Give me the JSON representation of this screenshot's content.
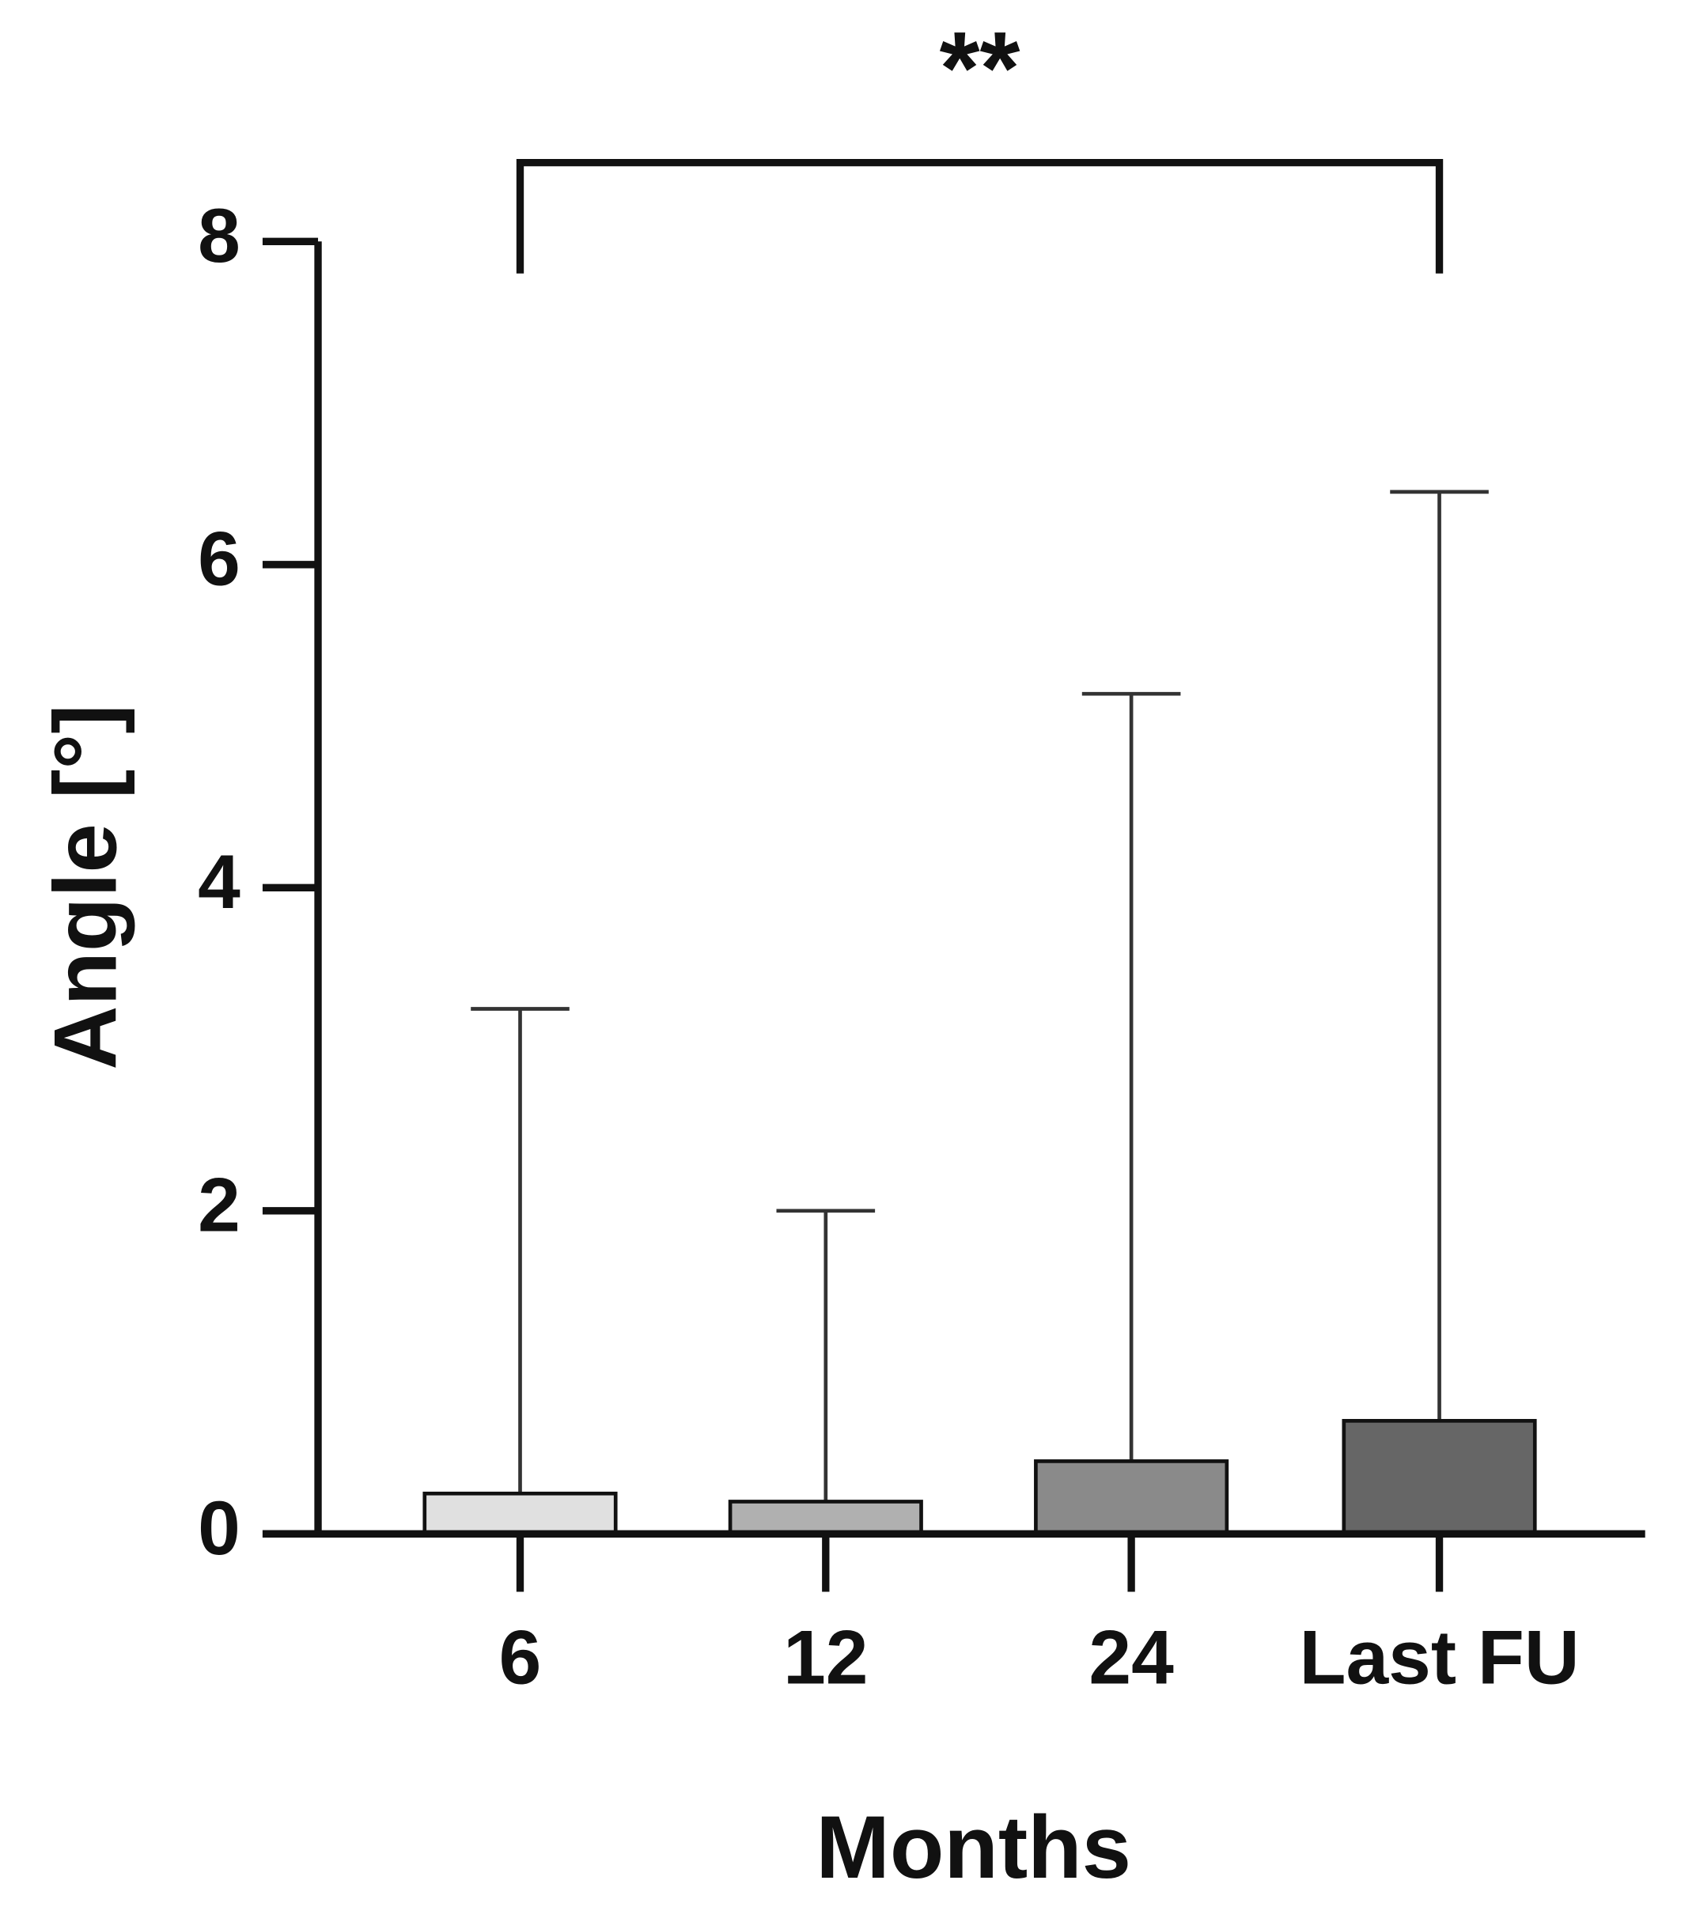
{
  "chart_data": {
    "type": "bar",
    "x_label": "Months",
    "y_label": "Angle [°]",
    "categories": [
      "6",
      "12",
      "24",
      "Last FU"
    ],
    "values": [
      0.25,
      0.2,
      0.45,
      0.7
    ],
    "errors": [
      3.0,
      1.8,
      4.75,
      5.75
    ],
    "colors": [
      "#e0e0e0",
      "#b0b0b0",
      "#8a8a8a",
      "#666666"
    ],
    "ylim": [
      0,
      8
    ],
    "yticks": [
      0,
      2,
      4,
      6,
      8
    ],
    "grid": false,
    "annotation": "**"
  }
}
